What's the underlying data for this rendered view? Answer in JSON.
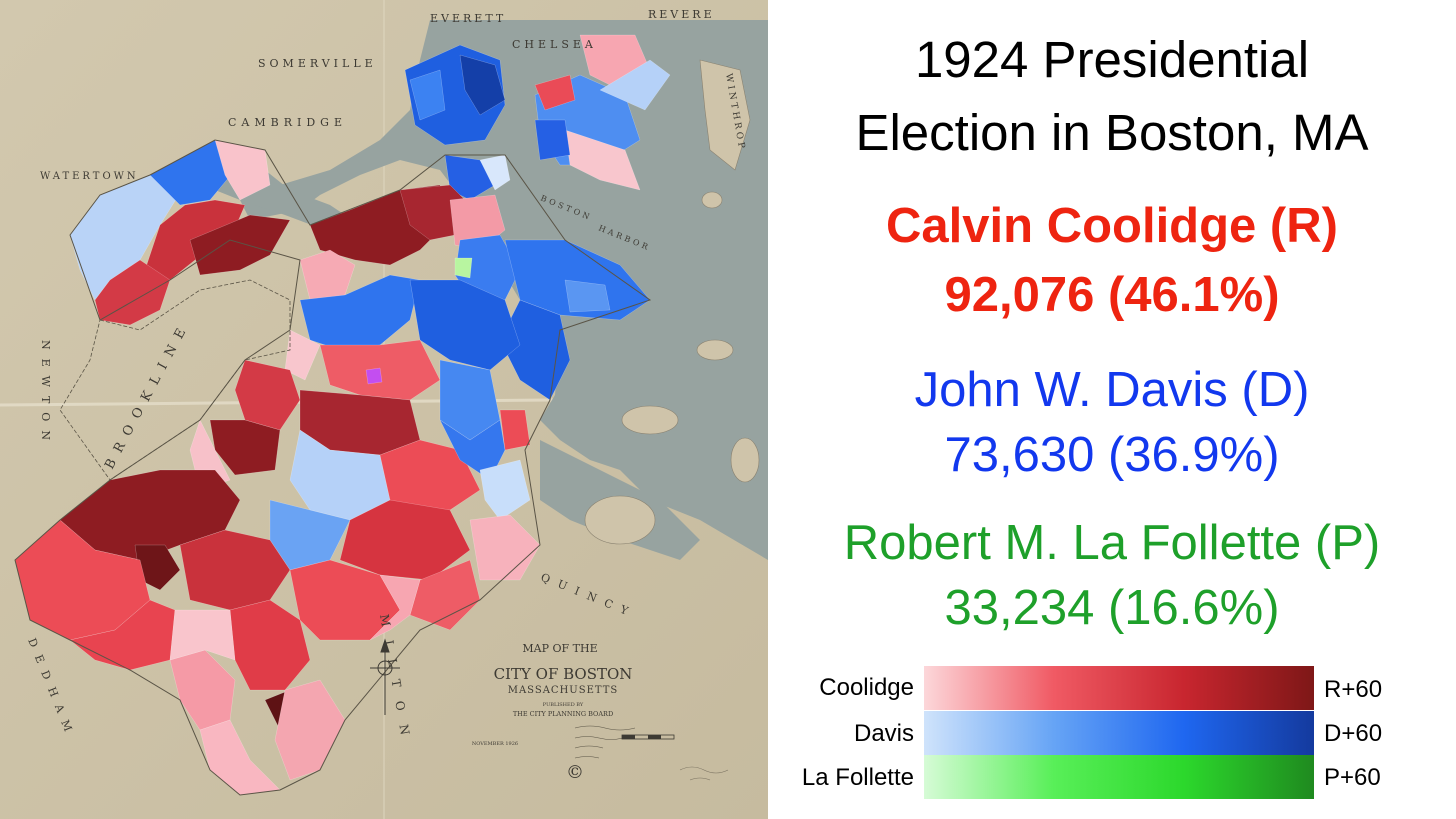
{
  "title": {
    "line1": "1924 Presidential",
    "line2": "Election in Boston, MA"
  },
  "candidates": [
    {
      "name": "Calvin Coolidge (R)",
      "result": "92,076 (46.1%)",
      "color": "#ee2410"
    },
    {
      "name": "John W. Davis (D)",
      "result": "73,630 (36.9%)",
      "color": "#1238ee"
    },
    {
      "name": "Robert M. La Follette (P)",
      "result": "33,234 (16.6%)",
      "color": "#1ea02a"
    }
  ],
  "legend": [
    {
      "label": "Coolidge",
      "max_label": "R+60",
      "gradient": [
        "#fcd7da",
        "#f05a64",
        "#c8262f",
        "#7e1717"
      ]
    },
    {
      "label": "Davis",
      "max_label": "D+60",
      "gradient": [
        "#cfe3fb",
        "#66a4f5",
        "#1f67f0",
        "#143a9e"
      ]
    },
    {
      "label": "La Follette",
      "max_label": "P+60",
      "gradient": [
        "#d6fbd6",
        "#58ef58",
        "#2cd82c",
        "#1f8a1f"
      ]
    }
  ],
  "map": {
    "header_title": "MAP OF THE",
    "city_title": "CITY OF BOSTON",
    "state_title": "MASSACHUSETTS",
    "published_by": "PUBLISHED BY",
    "publisher": "THE CITY PLANNING BOARD",
    "date": "NOVEMBER 1926",
    "copyright_mark": "©",
    "place_names": {
      "everett": "EVERETT",
      "revere": "REVERE",
      "chelsea": "CHELSEA",
      "somerville": "SOMERVILLE",
      "cambridge": "CAMBRIDGE",
      "watertown": "WATERTOWN",
      "brookline": "BROOKLINE",
      "newton": "NEWTON",
      "dedham": "DEDHAM",
      "milton": "MILTON",
      "quincy": "QUINCY",
      "winthrop": "WINTHROP",
      "boston_harbor_1": "BOSTON",
      "boston_harbor_2": "HARBOR"
    },
    "colors": {
      "paper": "#cfc4aa",
      "water": "#97a3a0",
      "r_light": "#f8aeb8",
      "r_mid": "#ec4c56",
      "r_dark": "#b52530",
      "r_darkest": "#6e1518",
      "d_light": "#bcd6fa",
      "d_mid": "#2f74ee",
      "d_dark": "#1848c8",
      "p_light": "#b8f5a0",
      "mixed": "#c34ef0"
    }
  }
}
